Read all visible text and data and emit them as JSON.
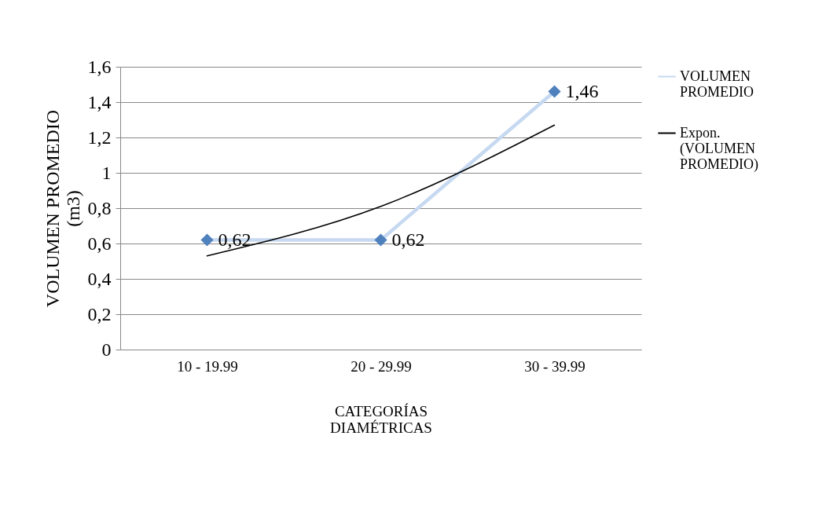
{
  "chart_data": {
    "type": "line",
    "xlabel": "CATEGORÍAS DIAMÉTRICAS",
    "ylabel": "VOLUMEN  PROMEDIO (m3)",
    "categories": [
      "10 - 19.99",
      "20 - 29.99",
      "30 - 39.99"
    ],
    "series": [
      {
        "name": "VOLUMEN PROMEDIO",
        "color": "#c6d9f1",
        "colors": [
          "#4f81bd",
          "#4f81bd",
          "#4f81bd"
        ],
        "marker": "diamond",
        "values": [
          0.62,
          0.62,
          1.46
        ],
        "value_labels": [
          "0,62",
          "0,62",
          "1,46"
        ]
      },
      {
        "name": "Expon. (VOLUMEN PROMEDIO)",
        "type": "line",
        "color": "#000000",
        "marker": "none",
        "x": [
          "10 - 19.99",
          "20 - 29.99",
          "30 - 39.99"
        ],
        "values": [
          0.53,
          0.81,
          1.27
        ]
      }
    ],
    "ylim": [
      0,
      1.6
    ],
    "yticks": [
      0,
      {
        "value": 0.2,
        "label": "0,2"
      },
      {
        "value": 0.4,
        "label": "0,4"
      },
      {
        "value": 0.6,
        "label": "0,6"
      },
      {
        "value": 0.8,
        "label": "0,8"
      },
      1,
      {
        "value": 1.2,
        "label": "1,2"
      },
      {
        "value": 1.4,
        "label": "1,4"
      },
      {
        "value": 1.6,
        "label": "1,6"
      }
    ],
    "grid": "y",
    "legend": "right"
  }
}
